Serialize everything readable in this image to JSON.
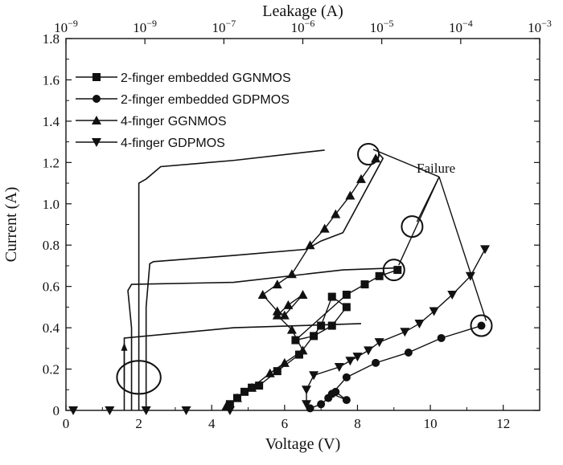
{
  "chart_data": {
    "type": "scatter",
    "xlabel": "Voltage (V)",
    "ylabel": "Current (A)",
    "x2label": "Leakage (A)",
    "xlim": [
      0,
      13
    ],
    "ylim": [
      0,
      1.8
    ],
    "xticks": [
      "0",
      "2",
      "4",
      "6",
      "8",
      "10",
      "12"
    ],
    "yticks": [
      "0",
      "0.2",
      "0.4",
      "0.6",
      "0.8",
      "1.0",
      "1.2",
      "1.4",
      "1.6",
      "1.8"
    ],
    "x2ticks": [
      {
        "base": "10",
        "exp": "−9"
      },
      {
        "base": "10",
        "exp": "−9"
      },
      {
        "base": "10",
        "exp": "−7"
      },
      {
        "base": "10",
        "exp": "−6"
      },
      {
        "base": "10",
        "exp": "−5"
      },
      {
        "base": "10",
        "exp": "−4"
      },
      {
        "base": "10",
        "exp": "−3"
      }
    ],
    "grid": false,
    "legend_position": "top-left",
    "annotation": "Failure",
    "series": [
      {
        "name": "2-finger embedded GGNMOS",
        "marker": "square",
        "points": [
          [
            4.5,
            0.03
          ],
          [
            4.7,
            0.06
          ],
          [
            4.9,
            0.09
          ],
          [
            5.1,
            0.11
          ],
          [
            5.3,
            0.12
          ],
          [
            5.8,
            0.19
          ],
          [
            6.4,
            0.27
          ],
          [
            7.0,
            0.41
          ],
          [
            7.3,
            0.55
          ],
          [
            7.7,
            0.5
          ],
          [
            7.3,
            0.41
          ],
          [
            6.8,
            0.36
          ],
          [
            6.3,
            0.34
          ],
          [
            7.7,
            0.56
          ],
          [
            8.2,
            0.61
          ],
          [
            8.6,
            0.65
          ],
          [
            9.1,
            0.68
          ]
        ]
      },
      {
        "name": "2-finger embedded GDPMOS",
        "marker": "circle",
        "points": [
          [
            6.7,
            0.01
          ],
          [
            7.0,
            0.03
          ],
          [
            7.2,
            0.06
          ],
          [
            7.4,
            0.09
          ],
          [
            7.7,
            0.05
          ],
          [
            7.3,
            0.08
          ],
          [
            7.7,
            0.16
          ],
          [
            8.5,
            0.23
          ],
          [
            9.4,
            0.28
          ],
          [
            10.3,
            0.35
          ],
          [
            11.4,
            0.41
          ]
        ]
      },
      {
        "name": "4-finger GGNMOS",
        "marker": "triangle-up",
        "points": [
          [
            4.4,
            0.02
          ],
          [
            4.7,
            0.06
          ],
          [
            5.1,
            0.11
          ],
          [
            5.6,
            0.18
          ],
          [
            6.0,
            0.23
          ],
          [
            6.5,
            0.29
          ],
          [
            6.2,
            0.39
          ],
          [
            5.8,
            0.46
          ],
          [
            6.1,
            0.51
          ],
          [
            6.5,
            0.56
          ],
          [
            6.0,
            0.46
          ],
          [
            5.8,
            0.48
          ],
          [
            5.4,
            0.56
          ],
          [
            5.8,
            0.61
          ],
          [
            6.2,
            0.66
          ],
          [
            6.7,
            0.8
          ],
          [
            7.1,
            0.88
          ],
          [
            7.4,
            0.95
          ],
          [
            7.8,
            1.04
          ],
          [
            8.1,
            1.12
          ],
          [
            8.5,
            1.22
          ]
        ]
      },
      {
        "name": "4-finger GDPMOS",
        "marker": "triangle-down",
        "points": [
          [
            6.6,
            0.03
          ],
          [
            6.6,
            0.1
          ],
          [
            6.8,
            0.17
          ],
          [
            7.5,
            0.21
          ],
          [
            7.8,
            0.24
          ],
          [
            8.0,
            0.26
          ],
          [
            8.3,
            0.29
          ],
          [
            8.6,
            0.33
          ],
          [
            9.3,
            0.38
          ],
          [
            9.7,
            0.42
          ],
          [
            10.1,
            0.48
          ],
          [
            10.6,
            0.56
          ],
          [
            11.1,
            0.65
          ],
          [
            11.5,
            0.78
          ]
        ]
      },
      {
        "name": "",
        "marker": "triangle-down",
        "points": [
          [
            0.2,
            0.0
          ],
          [
            1.2,
            0.0
          ],
          [
            2.2,
            0.0
          ],
          [
            3.3,
            0.0
          ],
          [
            4.5,
            0.0
          ]
        ]
      }
    ],
    "leakage_curves": [
      [
        [
          1.6,
          0.0
        ],
        [
          1.6,
          0.13
        ],
        [
          1.6,
          0.35
        ],
        [
          4.6,
          0.4
        ],
        [
          8.1,
          0.42
        ]
      ],
      [
        [
          1.8,
          0.0
        ],
        [
          1.8,
          0.4
        ],
        [
          1.7,
          0.58
        ],
        [
          1.8,
          0.61
        ],
        [
          4.6,
          0.62
        ],
        [
          7.6,
          0.68
        ],
        [
          9.1,
          0.69
        ]
      ],
      [
        [
          2.2,
          0.0
        ],
        [
          2.2,
          0.5
        ],
        [
          2.3,
          0.71
        ],
        [
          2.4,
          0.72
        ],
        [
          4.6,
          0.75
        ],
        [
          6.6,
          0.78
        ],
        [
          7.0,
          0.82
        ],
        [
          7.6,
          0.86
        ],
        [
          8.7,
          1.22
        ],
        [
          8.6,
          1.24
        ]
      ],
      [
        [
          2.0,
          0.0
        ],
        [
          2.0,
          0.6
        ],
        [
          2.0,
          1.1
        ],
        [
          2.2,
          1.12
        ],
        [
          2.6,
          1.18
        ],
        [
          4.6,
          1.21
        ],
        [
          7.1,
          1.26
        ]
      ]
    ],
    "leakage_arrow": [
      [
        1.6,
        0.13
      ],
      [
        1.6,
        0.32
      ]
    ],
    "leakage_ellipse": {
      "cx": 2.0,
      "cy": 0.16,
      "rx": 0.6,
      "ry": 0.08
    },
    "failure_points": [
      [
        8.3,
        1.24
      ],
      [
        9.0,
        0.68
      ],
      [
        9.5,
        0.89
      ],
      [
        11.4,
        0.41
      ]
    ],
    "failure_label_anchor": [
      9.8,
      1.15
    ]
  }
}
